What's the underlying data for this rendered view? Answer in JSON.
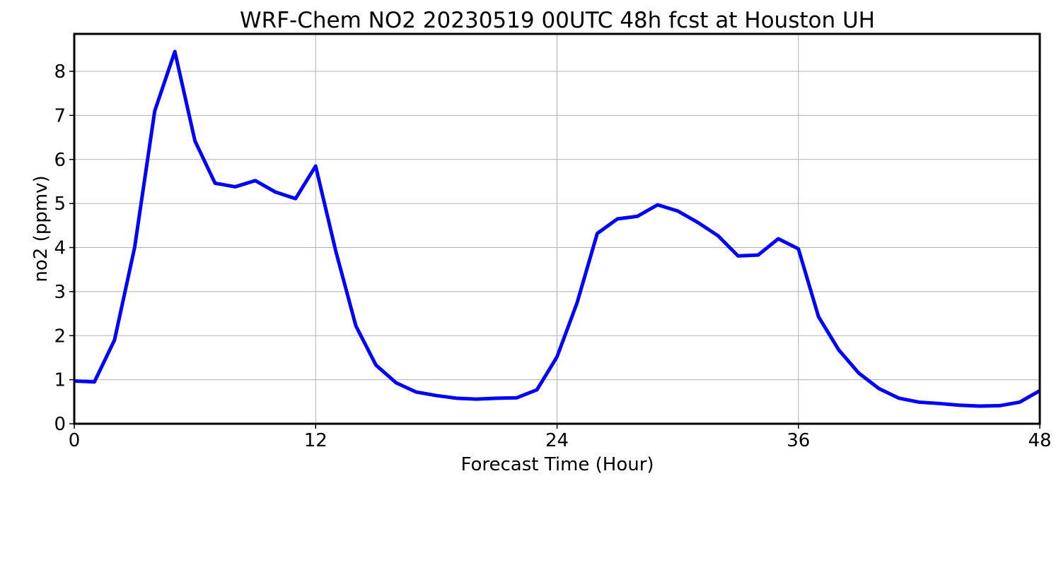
{
  "chart_data": {
    "type": "line",
    "title": "WRF-Chem NO2  20230519 00UTC 48h fcst at Houston UH",
    "xlabel": "Forecast Time (Hour)",
    "ylabel": "no2  (ppmv)",
    "xlim": [
      0,
      48
    ],
    "ylim": [
      0,
      8.85
    ],
    "xticks": [
      0,
      12,
      24,
      36,
      48
    ],
    "yticks": [
      0,
      1,
      2,
      3,
      4,
      5,
      6,
      7,
      8
    ],
    "grid": true,
    "line_color": "#0000ff",
    "series": [
      {
        "x": [
          0,
          1,
          2,
          3,
          4,
          5,
          6,
          7,
          8,
          9,
          10,
          11,
          12,
          13,
          14,
          15,
          16,
          17,
          18,
          19,
          20,
          21,
          22,
          23,
          24,
          25,
          26,
          27,
          28,
          29,
          30,
          31,
          32,
          33,
          34,
          35,
          36,
          37,
          38,
          39,
          40,
          41,
          42,
          43,
          44,
          45,
          46,
          47,
          48
        ],
        "values": [
          0.97,
          0.95,
          1.9,
          4.0,
          7.1,
          8.45,
          6.42,
          5.46,
          5.38,
          5.52,
          5.26,
          5.11,
          5.85,
          3.92,
          2.22,
          1.33,
          0.93,
          0.72,
          0.64,
          0.58,
          0.56,
          0.58,
          0.59,
          0.77,
          1.52,
          2.75,
          4.32,
          4.65,
          4.71,
          4.97,
          4.83,
          4.57,
          4.27,
          3.81,
          3.83,
          4.2,
          3.97,
          2.43,
          1.68,
          1.15,
          0.8,
          0.58,
          0.49,
          0.46,
          0.42,
          0.4,
          0.41,
          0.49,
          0.75
        ]
      }
    ]
  }
}
